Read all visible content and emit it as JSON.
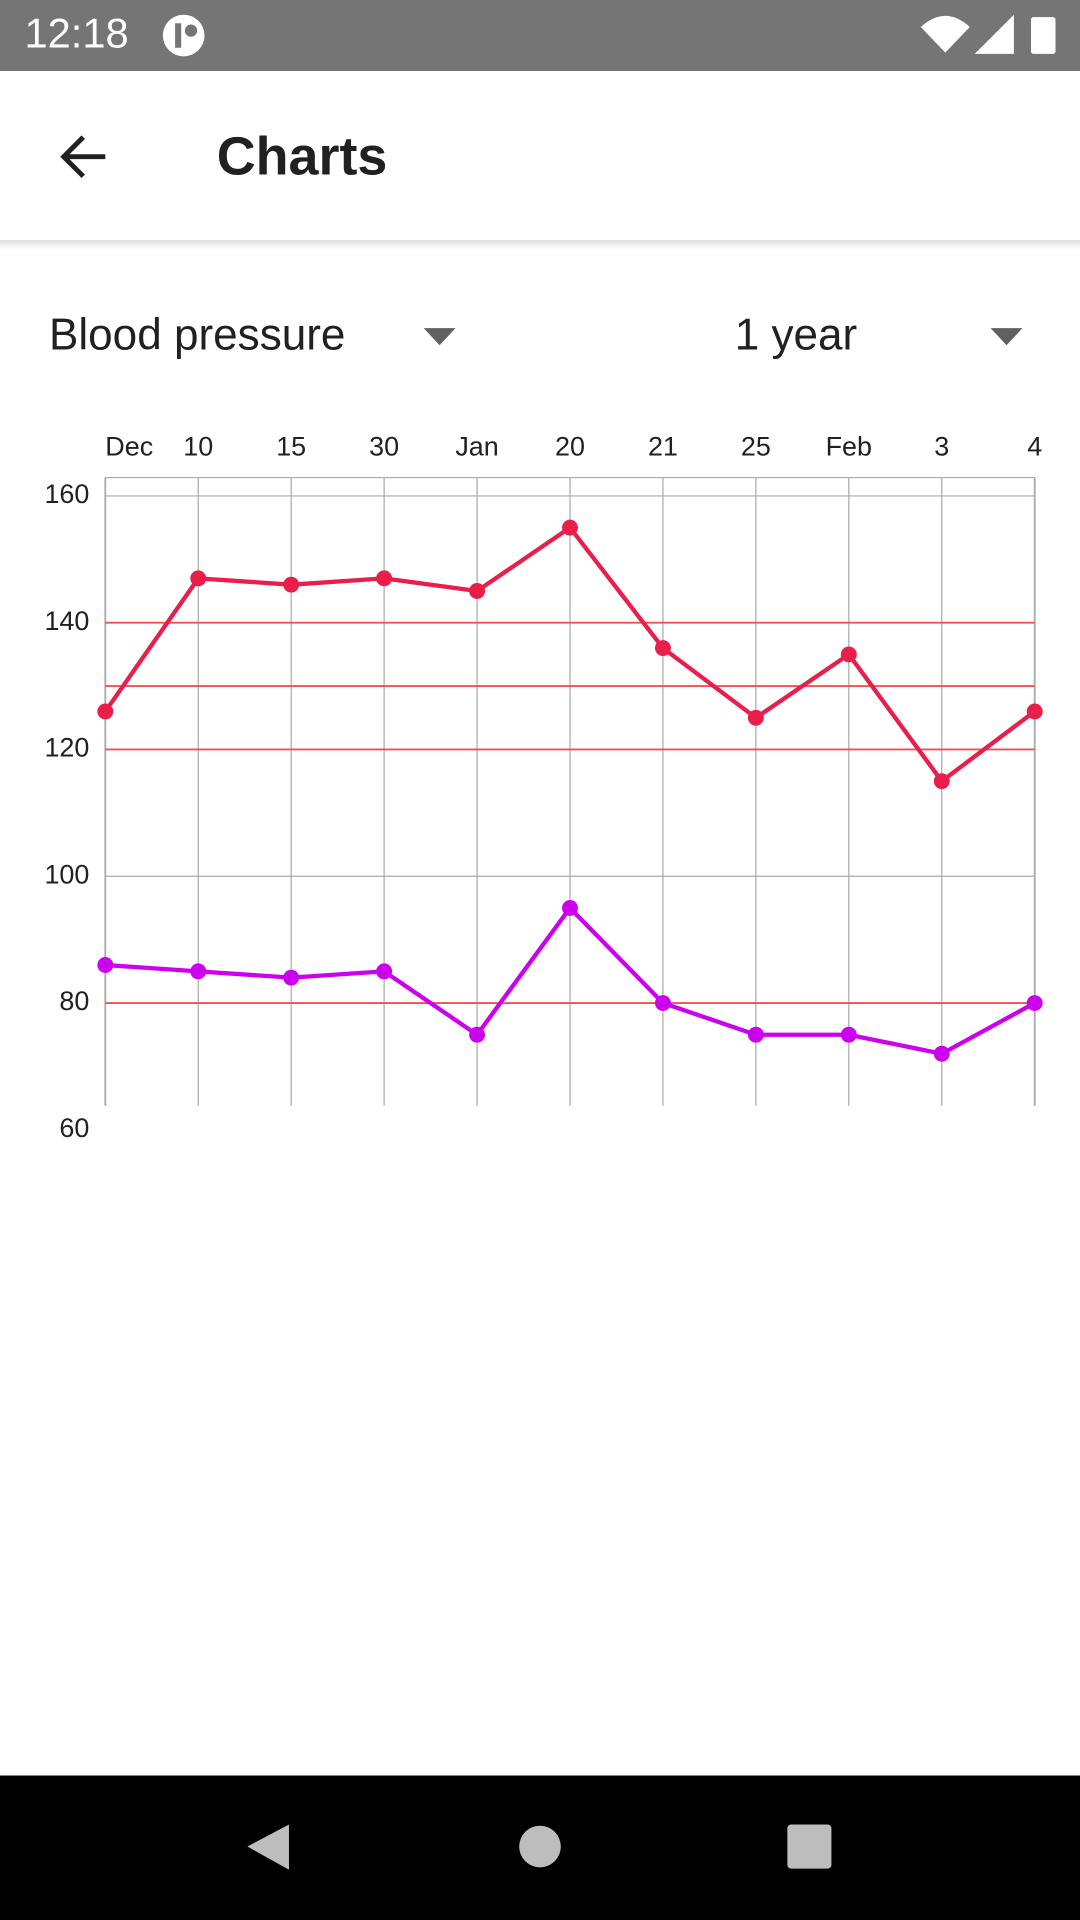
{
  "status_bar": {
    "time": "12:18"
  },
  "app_bar": {
    "title": "Charts"
  },
  "filters": {
    "metric": "Blood pressure",
    "period": "1 year"
  },
  "chart_data": {
    "type": "line",
    "categories": [
      "Dec",
      "10",
      "15",
      "30",
      "Jan",
      "20",
      "21",
      "25",
      "Feb",
      "3",
      "4"
    ],
    "series": [
      {
        "color": "#e91e4a",
        "values": [
          126,
          147,
          146,
          147,
          145,
          155,
          136,
          125,
          135,
          115,
          126
        ]
      },
      {
        "color": "#cc00ee",
        "values": [
          86,
          85,
          84,
          85,
          75,
          95,
          80,
          75,
          75,
          72,
          80
        ]
      }
    ],
    "ylim": [
      63.8,
      162.9
    ],
    "yticks": [
      60,
      80,
      100,
      120,
      140,
      160
    ],
    "grid": true,
    "reference_lines": [
      140,
      130,
      120,
      80
    ],
    "reference_color": "#ef5350"
  }
}
